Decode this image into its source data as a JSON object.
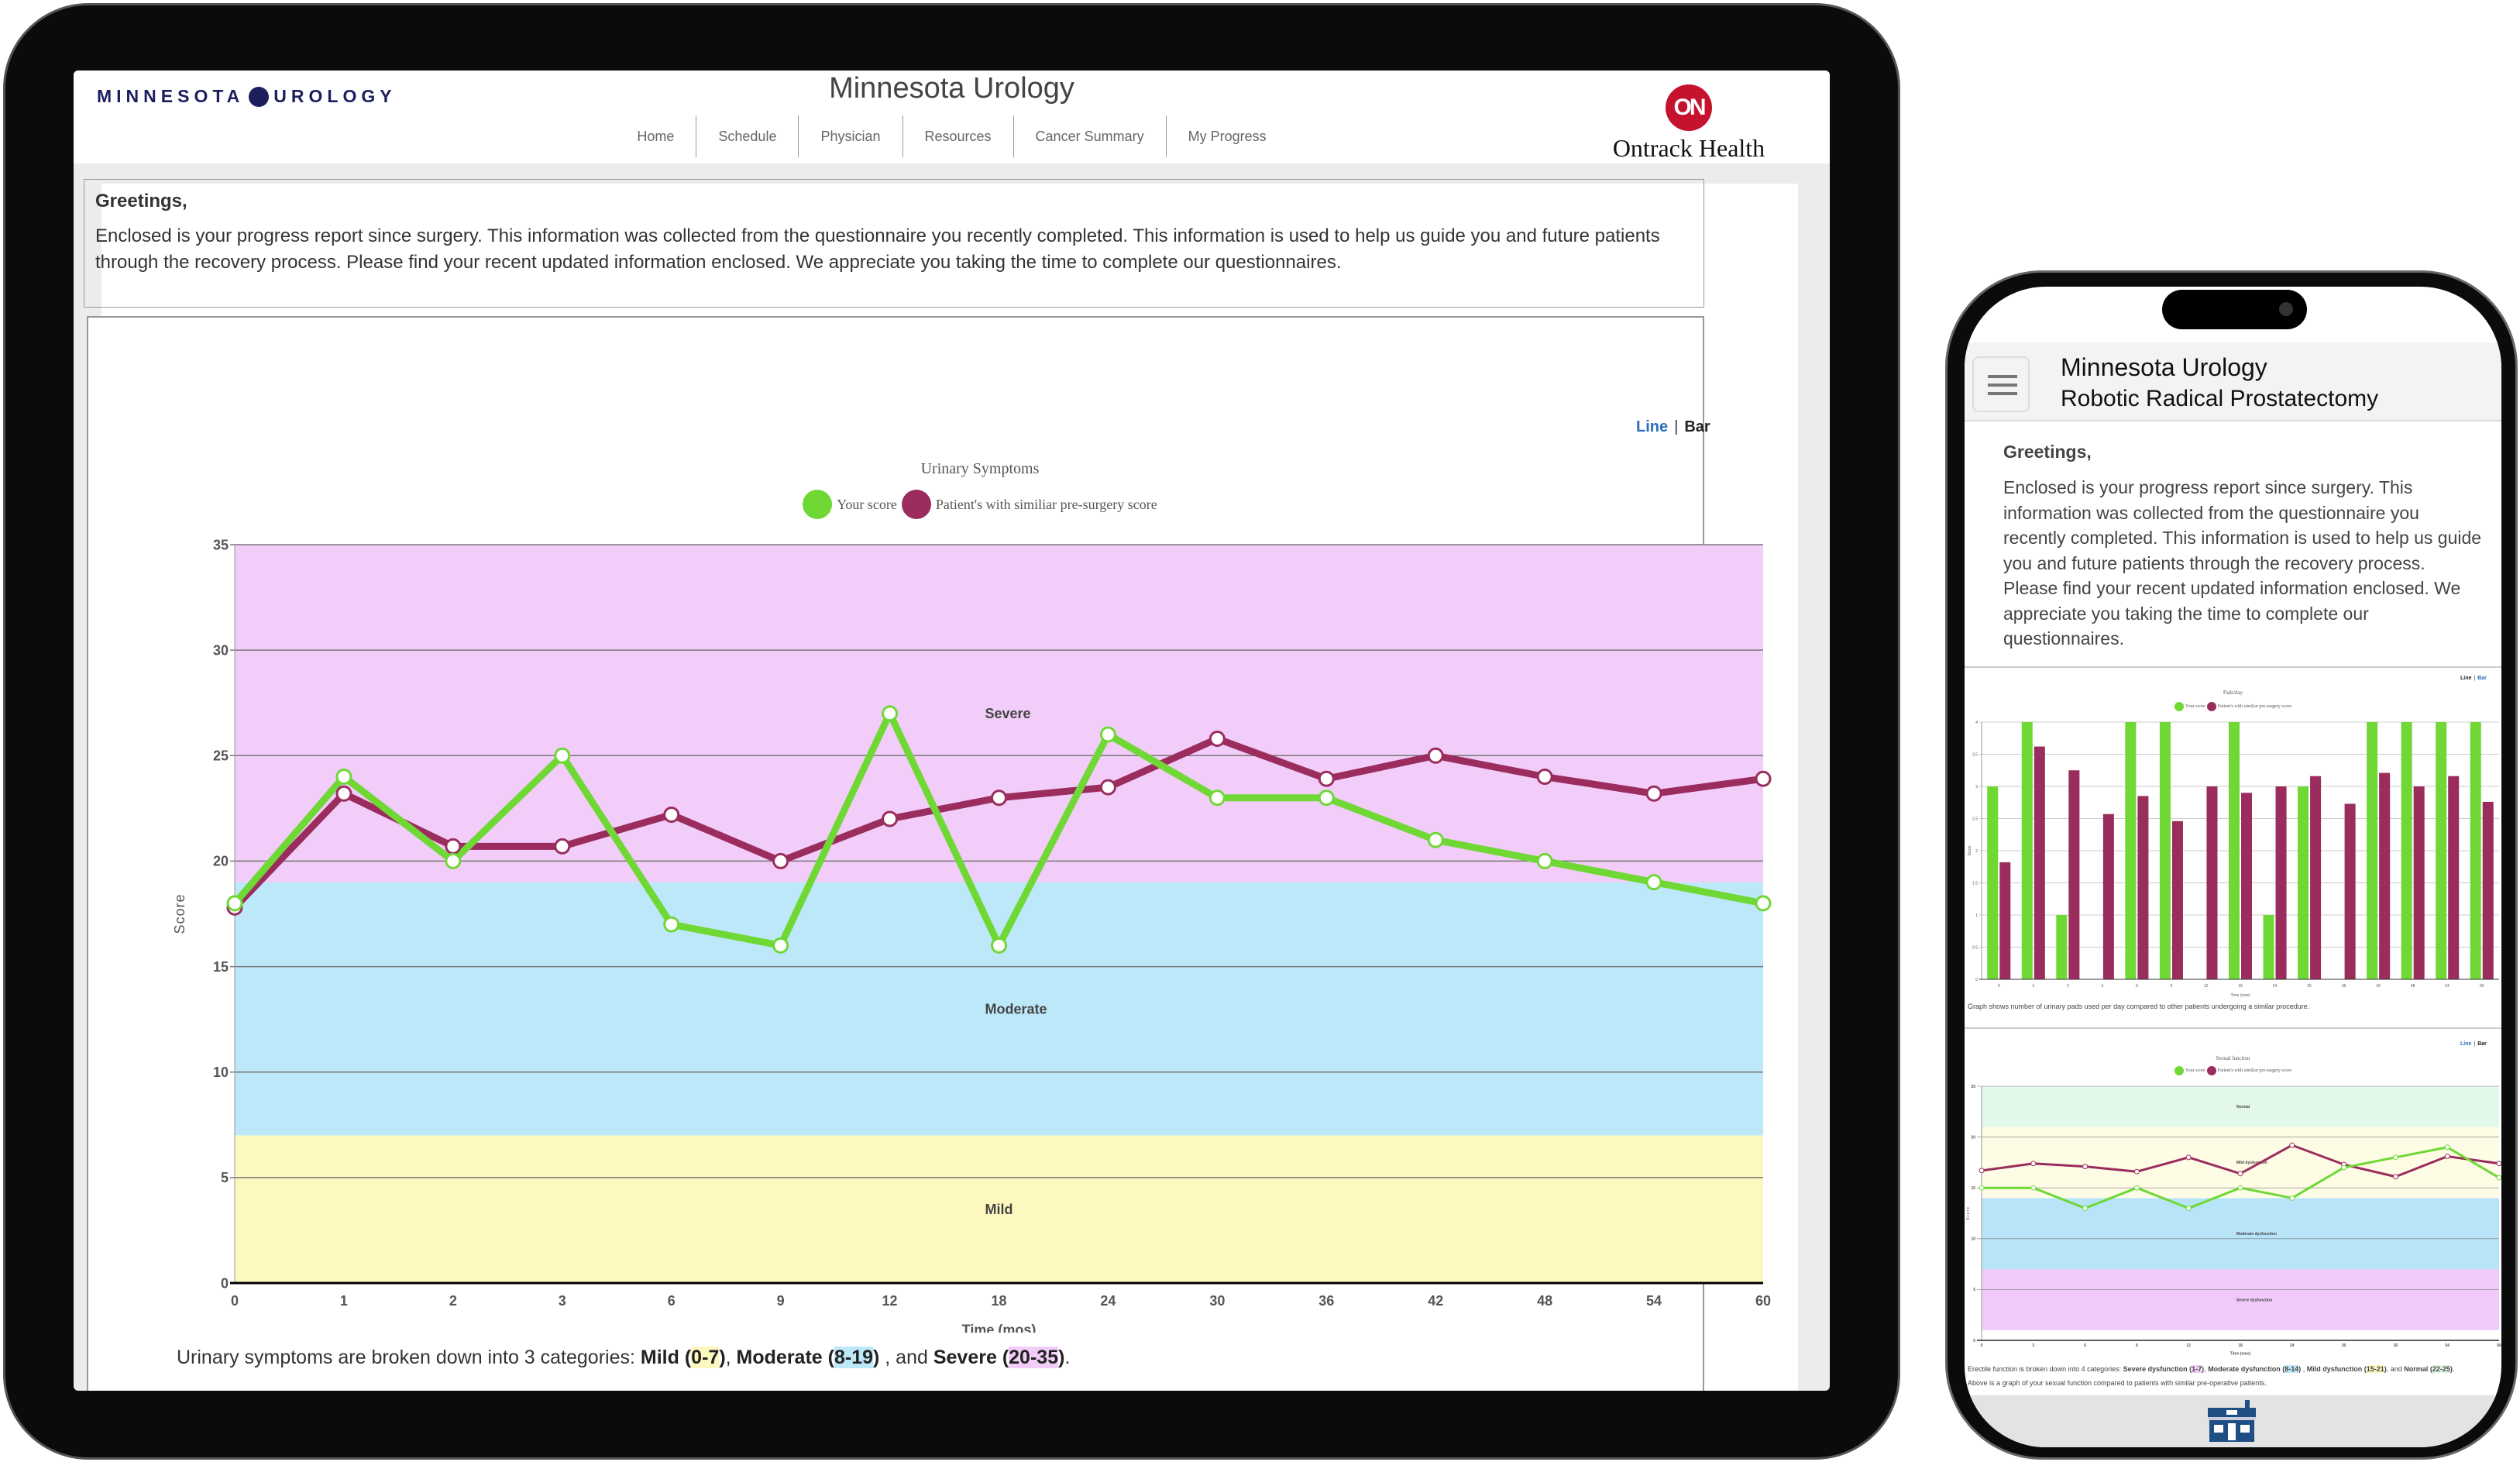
{
  "tablet": {
    "logo_text": [
      "MINNESOTA",
      "UROLOGY"
    ],
    "title": "Minnesota Urology",
    "nav": [
      "Home",
      "Schedule",
      "Physician",
      "Resources",
      "Cancer Summary",
      "My Progress"
    ],
    "brand_badge": "ON",
    "brand_name": "Ontrack Health",
    "greeting": "Greetings,",
    "intro": "Enclosed is your progress report since surgery. This information was collected from the questionnaire you recently completed. This information is used to help us guide you and future patients through the recovery process. Please find your recent updated information enclosed. We appreciate you taking the time to complete our questionnaires.",
    "toggle": {
      "line": "Line",
      "sep": "|",
      "bar": "Bar"
    },
    "caption": {
      "prefix": "Urinary symptoms are broken down into 3 categories: ",
      "c1": "Mild",
      "r1": "0-7",
      "s1": ", ",
      "c2": "Moderate",
      "r2": "8-19",
      "s2": " , and ",
      "c3": "Severe",
      "r3": "20-35",
      "end": "."
    }
  },
  "phone": {
    "title": "Minnesota Urology",
    "subtitle": "Robotic Radical Prostatectomy",
    "greeting": "Greetings,",
    "intro": "Enclosed is your progress report since surgery. This information was collected from the questionnaire you recently completed. This information is used to help us guide you and future patients through the recovery process. Please find your recent updated information enclosed. We appreciate you taking the time to complete our questionnaires.",
    "toggle": {
      "line": "Line",
      "sep": "|",
      "bar": "Bar"
    },
    "bar_caption": "Graph shows number of urinary pads used per day compared to other patients undergoing a similar procedure.",
    "sexual_caption": {
      "prefix": "Erectile function is broken down into 4 categories: ",
      "c1": "Severe dysfunction",
      "r1": "1-7",
      "s1": ", ",
      "c2": "Moderate dysfunction",
      "r2": "8-14",
      "s2": " , ",
      "c3": "Mild dysfunction",
      "r3": "15-21",
      "s3": ", and ",
      "c4": "Normal",
      "r4": "22-25",
      "end": "."
    },
    "sexual_note": "Above is a graph of your sexual function compared to patients with similar pre-operative patients.",
    "home_icon": "home-icon"
  },
  "colors": {
    "your_score": "#6fd835",
    "similar": "#9a2d5e",
    "toggle_active": "#2a6ebb"
  },
  "chart_data": [
    {
      "type": "line",
      "title": "Urinary Symptoms",
      "xlabel": "Time (mos)",
      "ylabel": "Score",
      "ylim": [
        0,
        35
      ],
      "yticks": [
        0,
        5,
        10,
        15,
        20,
        25,
        30,
        35
      ],
      "categories": [
        "0",
        "1",
        "2",
        "3",
        "6",
        "9",
        "12",
        "18",
        "24",
        "30",
        "36",
        "42",
        "48",
        "54",
        "60"
      ],
      "bands": [
        {
          "label": "Mild",
          "from": 0,
          "to": 7,
          "color": "#fdf9be"
        },
        {
          "label": "Moderate",
          "from": 7,
          "to": 19,
          "color": "#bde8f9"
        },
        {
          "label": "Severe",
          "from": 19,
          "to": 35,
          "color": "#f2cdf9"
        }
      ],
      "series": [
        {
          "name": "Your score",
          "color": "#6fd835",
          "values": [
            18,
            24,
            20,
            25,
            17,
            16,
            27,
            16,
            26,
            23,
            23,
            21,
            20,
            19,
            18
          ]
        },
        {
          "name": "Patient's with similiar pre-surgery score",
          "color": "#9a2d5e",
          "values": [
            17.8,
            23.2,
            20.7,
            20.7,
            22.2,
            20,
            22,
            23,
            23.5,
            25.8,
            23.9,
            25,
            24,
            23.2,
            23.9
          ]
        }
      ],
      "grid": true,
      "legend": "top-center"
    },
    {
      "type": "bar",
      "title": "Pads/day",
      "xlabel": "Time (mos)",
      "ylabel": "Score",
      "ylim": [
        0,
        4
      ],
      "yticks": [
        0,
        0.5,
        1,
        1.5,
        2,
        2.5,
        3,
        3.5,
        4
      ],
      "categories": [
        "0",
        "1",
        "2",
        "3",
        "6",
        "9",
        "12",
        "18",
        "24",
        "30",
        "36",
        "42",
        "48",
        "54",
        "60"
      ],
      "series": [
        {
          "name": "Your score",
          "color": "#6fd835",
          "values": [
            3,
            4,
            1,
            0,
            4,
            4,
            0,
            4,
            1,
            3,
            0,
            4,
            4,
            4,
            4
          ]
        },
        {
          "name": "Patient's with similiar pre-surgery score",
          "color": "#9a2d5e",
          "values": [
            1.82,
            3.62,
            3.25,
            2.57,
            2.85,
            2.46,
            3,
            2.9,
            3,
            3.16,
            2.73,
            3.21,
            3,
            3.16,
            2.76
          ]
        }
      ],
      "grid": true,
      "legend": "top-center"
    },
    {
      "type": "line",
      "title": "Sexual function",
      "xlabel": "Time (mos)",
      "ylabel": "Score",
      "ylim": [
        0,
        25
      ],
      "yticks": [
        0,
        5,
        10,
        15,
        20,
        25
      ],
      "categories": [
        "0",
        "3",
        "6",
        "9",
        "12",
        "18",
        "24",
        "30",
        "36",
        "54",
        "60"
      ],
      "bands": [
        {
          "label": "Severe dysfunction",
          "from": 1,
          "to": 7,
          "color": "#f0cafb"
        },
        {
          "label": "Moderate dysfunction",
          "from": 7,
          "to": 14,
          "color": "#b7e4f9"
        },
        {
          "label": "Mild dysfunction",
          "from": 14,
          "to": 21,
          "color": "#fffce6"
        },
        {
          "label": "Normal",
          "from": 21,
          "to": 25,
          "color": "#e2f8e8"
        }
      ],
      "series": [
        {
          "name": "Your score",
          "color": "#6fd835",
          "values": [
            15,
            15,
            13,
            15,
            13,
            15,
            14,
            17,
            18,
            19,
            16
          ]
        },
        {
          "name": "Patient's with similiar pre-surgery score",
          "color": "#9a2d5e",
          "values": [
            16.7,
            17.4,
            17.1,
            16.6,
            18,
            16.4,
            19.2,
            17.3,
            16.1,
            18.1,
            17.4
          ]
        }
      ],
      "grid": true,
      "legend": "top-center"
    }
  ]
}
